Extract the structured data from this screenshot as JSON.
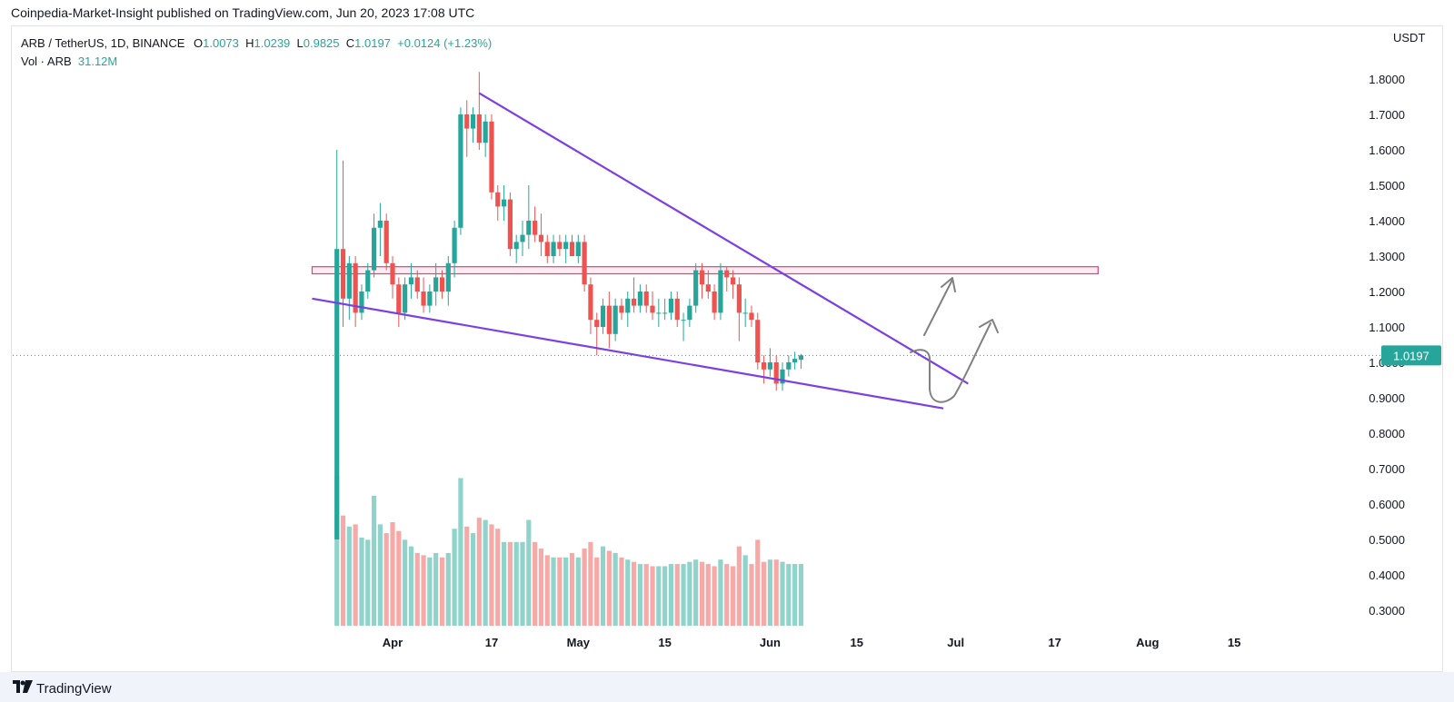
{
  "header": {
    "publisher": "Coinpedia-Market-Insight published on TradingView.com, Jun 20, 2023 17:08 UTC"
  },
  "legend": {
    "symbol": "ARB / TetherUS, 1D, BINANCE",
    "o_label": "O",
    "o_value": "1.0073",
    "h_label": "H",
    "h_value": "1.0239",
    "l_label": "L",
    "l_value": "0.9825",
    "c_label": "C",
    "c_value": "1.0197",
    "change": "+0.0124 (+1.23%)",
    "vol_label": "Vol · ARB",
    "vol_value": "31.12M"
  },
  "currency": "USDT",
  "last_price_label": "1.0197",
  "footer": {
    "brand": "TradingView"
  },
  "colors": {
    "up": "#26a69a",
    "down": "#ef5350",
    "vol_up": "#8fd3cb",
    "vol_down": "#f7a9a7",
    "trendline": "#7b3fe4",
    "zone_border": "#e0407a",
    "zone_fill": "#fce4ec",
    "arrow": "#808080"
  },
  "chart_data": {
    "type": "candlestick",
    "symbol": "ARB/USDT",
    "interval": "1D",
    "y_ticks": [
      "1.8000",
      "1.7000",
      "1.6000",
      "1.5000",
      "1.4000",
      "1.3000",
      "1.2000",
      "1.1000",
      "1.0000",
      "0.9000",
      "0.8000",
      "0.7000",
      "0.6000",
      "0.5000",
      "0.4000",
      "0.3000"
    ],
    "ylim": [
      0.25,
      1.86
    ],
    "x_ticks": [
      {
        "label": "Apr",
        "date": "2023-04-01"
      },
      {
        "label": "17",
        "date": "2023-04-17"
      },
      {
        "label": "May",
        "date": "2023-05-01"
      },
      {
        "label": "15",
        "date": "2023-05-15"
      },
      {
        "label": "Jun",
        "date": "2023-06-01"
      },
      {
        "label": "15",
        "date": "2023-06-15"
      },
      {
        "label": "Jul",
        "date": "2023-07-01"
      },
      {
        "label": "17",
        "date": "2023-07-17"
      },
      {
        "label": "Aug",
        "date": "2023-08-01"
      },
      {
        "label": "15",
        "date": "2023-08-15"
      }
    ],
    "start_date": "2023-03-23",
    "candles": [
      {
        "o": 0.5,
        "h": 1.6,
        "l": 0.5,
        "c": 1.32,
        "v": 0.68
      },
      {
        "o": 1.32,
        "h": 1.57,
        "l": 1.1,
        "c": 1.18,
        "v": 0.5
      },
      {
        "o": 1.18,
        "h": 1.3,
        "l": 1.12,
        "c": 1.28,
        "v": 0.45
      },
      {
        "o": 1.28,
        "h": 1.3,
        "l": 1.1,
        "c": 1.14,
        "v": 0.46
      },
      {
        "o": 1.14,
        "h": 1.22,
        "l": 1.12,
        "c": 1.2,
        "v": 0.4
      },
      {
        "o": 1.2,
        "h": 1.28,
        "l": 1.18,
        "c": 1.26,
        "v": 0.39
      },
      {
        "o": 1.26,
        "h": 1.42,
        "l": 1.24,
        "c": 1.38,
        "v": 0.59
      },
      {
        "o": 1.38,
        "h": 1.45,
        "l": 1.3,
        "c": 1.4,
        "v": 0.46
      },
      {
        "o": 1.4,
        "h": 1.42,
        "l": 1.26,
        "c": 1.28,
        "v": 0.42
      },
      {
        "o": 1.28,
        "h": 1.3,
        "l": 1.18,
        "c": 1.22,
        "v": 0.47
      },
      {
        "o": 1.22,
        "h": 1.24,
        "l": 1.1,
        "c": 1.14,
        "v": 0.43
      },
      {
        "o": 1.14,
        "h": 1.24,
        "l": 1.12,
        "c": 1.22,
        "v": 0.39
      },
      {
        "o": 1.22,
        "h": 1.28,
        "l": 1.18,
        "c": 1.24,
        "v": 0.36
      },
      {
        "o": 1.24,
        "h": 1.26,
        "l": 1.18,
        "c": 1.2,
        "v": 0.33
      },
      {
        "o": 1.2,
        "h": 1.24,
        "l": 1.14,
        "c": 1.16,
        "v": 0.32
      },
      {
        "o": 1.16,
        "h": 1.22,
        "l": 1.14,
        "c": 1.2,
        "v": 0.31
      },
      {
        "o": 1.2,
        "h": 1.28,
        "l": 1.16,
        "c": 1.24,
        "v": 0.33
      },
      {
        "o": 1.24,
        "h": 1.26,
        "l": 1.18,
        "c": 1.2,
        "v": 0.31
      },
      {
        "o": 1.2,
        "h": 1.3,
        "l": 1.16,
        "c": 1.28,
        "v": 0.33
      },
      {
        "o": 1.28,
        "h": 1.4,
        "l": 1.24,
        "c": 1.38,
        "v": 0.44
      },
      {
        "o": 1.38,
        "h": 1.72,
        "l": 1.36,
        "c": 1.7,
        "v": 0.67
      },
      {
        "o": 1.7,
        "h": 1.74,
        "l": 1.58,
        "c": 1.66,
        "v": 0.45
      },
      {
        "o": 1.66,
        "h": 1.72,
        "l": 1.62,
        "c": 1.7,
        "v": 0.42
      },
      {
        "o": 1.7,
        "h": 1.82,
        "l": 1.6,
        "c": 1.62,
        "v": 0.49
      },
      {
        "o": 1.62,
        "h": 1.7,
        "l": 1.58,
        "c": 1.68,
        "v": 0.48
      },
      {
        "o": 1.68,
        "h": 1.7,
        "l": 1.46,
        "c": 1.48,
        "v": 0.46
      },
      {
        "o": 1.48,
        "h": 1.5,
        "l": 1.4,
        "c": 1.44,
        "v": 0.44
      },
      {
        "o": 1.44,
        "h": 1.5,
        "l": 1.4,
        "c": 1.46,
        "v": 0.38
      },
      {
        "o": 1.46,
        "h": 1.48,
        "l": 1.3,
        "c": 1.32,
        "v": 0.38
      },
      {
        "o": 1.32,
        "h": 1.36,
        "l": 1.28,
        "c": 1.34,
        "v": 0.38
      },
      {
        "o": 1.34,
        "h": 1.4,
        "l": 1.3,
        "c": 1.36,
        "v": 0.38
      },
      {
        "o": 1.36,
        "h": 1.5,
        "l": 1.32,
        "c": 1.4,
        "v": 0.48
      },
      {
        "o": 1.4,
        "h": 1.44,
        "l": 1.34,
        "c": 1.36,
        "v": 0.38
      },
      {
        "o": 1.36,
        "h": 1.42,
        "l": 1.3,
        "c": 1.34,
        "v": 0.35
      },
      {
        "o": 1.34,
        "h": 1.36,
        "l": 1.28,
        "c": 1.3,
        "v": 0.32
      },
      {
        "o": 1.3,
        "h": 1.36,
        "l": 1.28,
        "c": 1.34,
        "v": 0.31
      },
      {
        "o": 1.34,
        "h": 1.36,
        "l": 1.3,
        "c": 1.32,
        "v": 0.31
      },
      {
        "o": 1.32,
        "h": 1.36,
        "l": 1.28,
        "c": 1.34,
        "v": 0.31
      },
      {
        "o": 1.34,
        "h": 1.36,
        "l": 1.3,
        "c": 1.3,
        "v": 0.33
      },
      {
        "o": 1.3,
        "h": 1.36,
        "l": 1.28,
        "c": 1.34,
        "v": 0.31
      },
      {
        "o": 1.34,
        "h": 1.36,
        "l": 1.2,
        "c": 1.22,
        "v": 0.35
      },
      {
        "o": 1.22,
        "h": 1.24,
        "l": 1.08,
        "c": 1.12,
        "v": 0.38
      },
      {
        "o": 1.12,
        "h": 1.14,
        "l": 1.02,
        "c": 1.1,
        "v": 0.31
      },
      {
        "o": 1.1,
        "h": 1.18,
        "l": 1.08,
        "c": 1.16,
        "v": 0.36
      },
      {
        "o": 1.16,
        "h": 1.2,
        "l": 1.04,
        "c": 1.08,
        "v": 0.34
      },
      {
        "o": 1.08,
        "h": 1.18,
        "l": 1.06,
        "c": 1.16,
        "v": 0.33
      },
      {
        "o": 1.16,
        "h": 1.18,
        "l": 1.12,
        "c": 1.14,
        "v": 0.31
      },
      {
        "o": 1.14,
        "h": 1.2,
        "l": 1.1,
        "c": 1.18,
        "v": 0.3
      },
      {
        "o": 1.18,
        "h": 1.24,
        "l": 1.14,
        "c": 1.16,
        "v": 0.29
      },
      {
        "o": 1.16,
        "h": 1.22,
        "l": 1.14,
        "c": 1.2,
        "v": 0.28
      },
      {
        "o": 1.2,
        "h": 1.22,
        "l": 1.14,
        "c": 1.16,
        "v": 0.28
      },
      {
        "o": 1.16,
        "h": 1.2,
        "l": 1.12,
        "c": 1.14,
        "v": 0.27
      },
      {
        "o": 1.14,
        "h": 1.18,
        "l": 1.1,
        "c": 1.14,
        "v": 0.27
      },
      {
        "o": 1.14,
        "h": 1.18,
        "l": 1.12,
        "c": 1.14,
        "v": 0.27
      },
      {
        "o": 1.14,
        "h": 1.2,
        "l": 1.12,
        "c": 1.18,
        "v": 0.28
      },
      {
        "o": 1.18,
        "h": 1.2,
        "l": 1.1,
        "c": 1.12,
        "v": 0.28
      },
      {
        "o": 1.12,
        "h": 1.14,
        "l": 1.06,
        "c": 1.12,
        "v": 0.28
      },
      {
        "o": 1.12,
        "h": 1.18,
        "l": 1.1,
        "c": 1.16,
        "v": 0.29
      },
      {
        "o": 1.16,
        "h": 1.28,
        "l": 1.14,
        "c": 1.26,
        "v": 0.3
      },
      {
        "o": 1.26,
        "h": 1.28,
        "l": 1.18,
        "c": 1.22,
        "v": 0.29
      },
      {
        "o": 1.22,
        "h": 1.26,
        "l": 1.18,
        "c": 1.2,
        "v": 0.28
      },
      {
        "o": 1.2,
        "h": 1.22,
        "l": 1.12,
        "c": 1.14,
        "v": 0.27
      },
      {
        "o": 1.14,
        "h": 1.28,
        "l": 1.12,
        "c": 1.26,
        "v": 0.3
      },
      {
        "o": 1.26,
        "h": 1.27,
        "l": 1.2,
        "c": 1.24,
        "v": 0.28
      },
      {
        "o": 1.24,
        "h": 1.26,
        "l": 1.18,
        "c": 1.22,
        "v": 0.27
      },
      {
        "o": 1.22,
        "h": 1.24,
        "l": 1.06,
        "c": 1.14,
        "v": 0.36
      },
      {
        "o": 1.14,
        "h": 1.18,
        "l": 1.1,
        "c": 1.14,
        "v": 0.32
      },
      {
        "o": 1.14,
        "h": 1.16,
        "l": 1.1,
        "c": 1.12,
        "v": 0.28
      },
      {
        "o": 1.12,
        "h": 1.14,
        "l": 0.98,
        "c": 1.0,
        "v": 0.39
      },
      {
        "o": 1.0,
        "h": 1.02,
        "l": 0.94,
        "c": 0.98,
        "v": 0.29
      },
      {
        "o": 0.98,
        "h": 1.04,
        "l": 0.96,
        "c": 1.0,
        "v": 0.3
      },
      {
        "o": 1.0,
        "h": 1.02,
        "l": 0.92,
        "c": 0.94,
        "v": 0.3
      },
      {
        "o": 0.94,
        "h": 1.0,
        "l": 0.92,
        "c": 0.98,
        "v": 0.29
      },
      {
        "o": 0.98,
        "h": 1.02,
        "l": 0.96,
        "c": 1.0,
        "v": 0.28
      },
      {
        "o": 1.0,
        "h": 1.03,
        "l": 0.98,
        "c": 1.01,
        "v": 0.28
      },
      {
        "o": 1.0073,
        "h": 1.0239,
        "l": 0.9825,
        "c": 1.0197,
        "v": 0.28
      }
    ],
    "drawings": {
      "resistance_zone": {
        "top": 1.27,
        "bottom": 1.25,
        "from": "2023-03-19",
        "to": "2023-07-24"
      },
      "upper_trendline": [
        {
          "date": "2023-04-15",
          "price": 1.76
        },
        {
          "date": "2023-07-03",
          "price": 0.94
        }
      ],
      "lower_trendline": [
        {
          "date": "2023-03-19",
          "price": 1.18
        },
        {
          "date": "2023-06-29",
          "price": 0.87
        }
      ]
    }
  }
}
